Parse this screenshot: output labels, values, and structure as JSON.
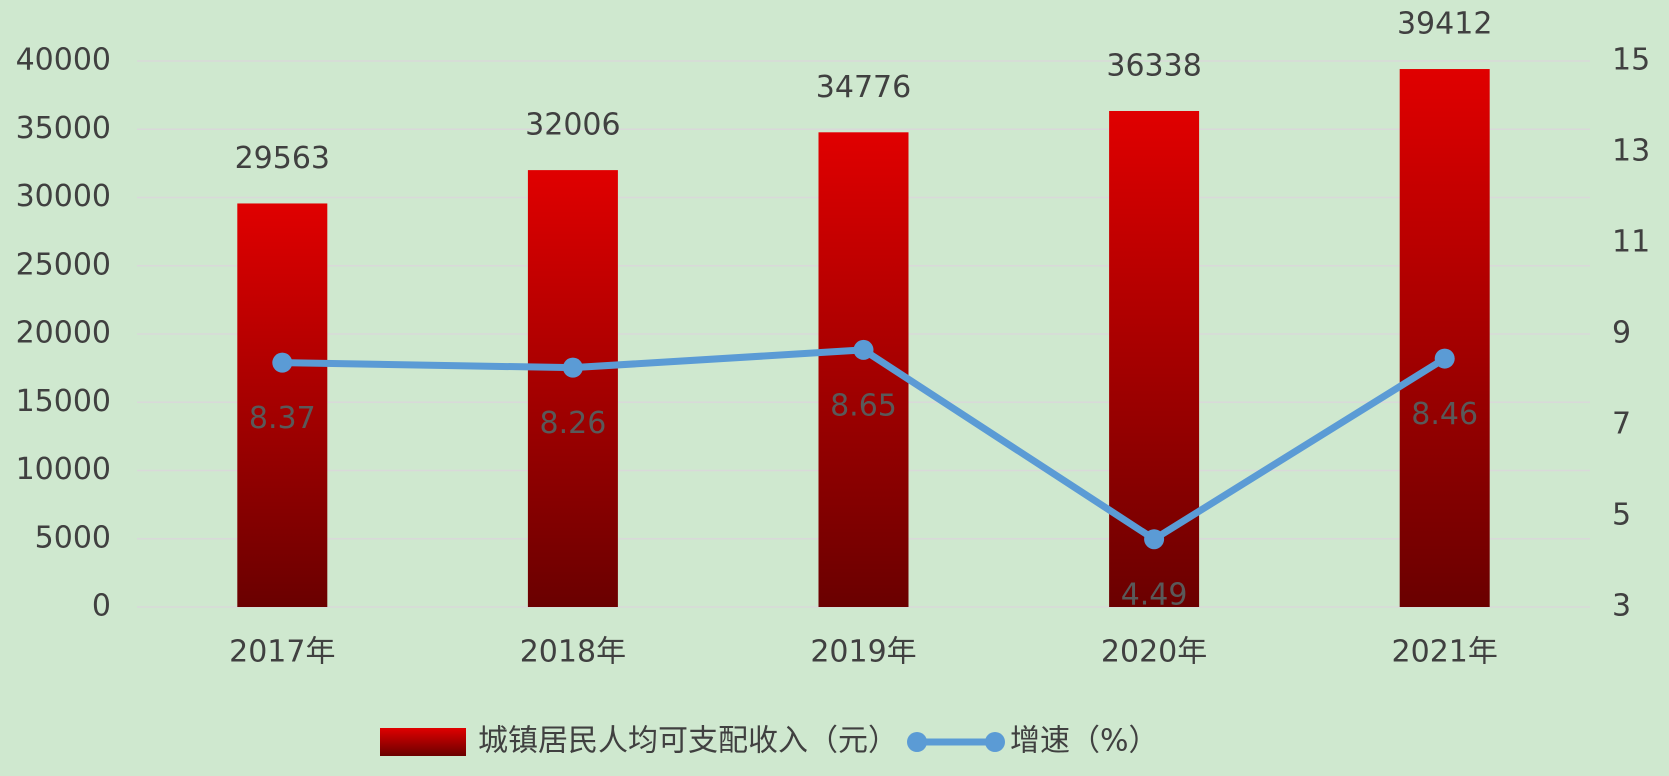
{
  "chart_data": {
    "type": "bar",
    "categories": [
      "2017年",
      "2018年",
      "2019年",
      "2020年",
      "2021年"
    ],
    "series": [
      {
        "name": "城镇居民人均可支配收入（元）",
        "type": "bar",
        "color": "#e00000",
        "values": [
          29563,
          32006,
          34776,
          36338,
          39412
        ]
      },
      {
        "name": "增速（%）",
        "type": "line",
        "axis": "y2",
        "color": "#5b9bd5",
        "values": [
          8.37,
          8.26,
          8.65,
          4.49,
          8.46
        ]
      }
    ],
    "ylim": [
      0,
      40000
    ],
    "yticks": [
      0,
      5000,
      10000,
      15000,
      20000,
      25000,
      30000,
      35000,
      40000
    ],
    "y2lim": [
      3,
      15
    ],
    "y2ticks": [
      3,
      5,
      7,
      9,
      11,
      13,
      15
    ],
    "grid": true,
    "legend": "bottom"
  }
}
